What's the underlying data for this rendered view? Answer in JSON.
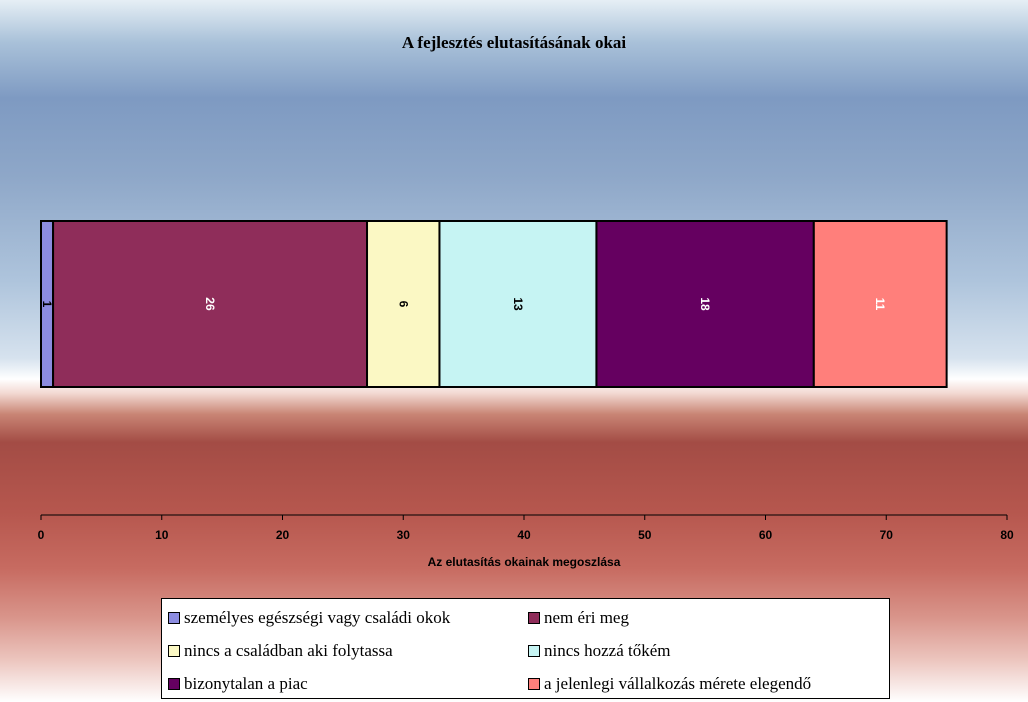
{
  "chart_data": {
    "type": "bar",
    "orientation": "horizontal",
    "stacked": true,
    "title": "A fejlesztés elutasításának okai",
    "xlabel": "Az elutasítás okainak megoszlása",
    "ylabel": "",
    "xlim": [
      0,
      80
    ],
    "x_ticks": [
      "0",
      "10",
      "20",
      "30",
      "40",
      "50",
      "60",
      "70",
      "80"
    ],
    "grid": false,
    "legend_position": "bottom",
    "series": [
      {
        "name": "személyes egészségi vagy családi okok",
        "value": 1,
        "label": "1",
        "color": "#8c8ce0",
        "label_color": "#000000"
      },
      {
        "name": "nem éri meg",
        "value": 26,
        "label": "26",
        "color": "#8f2d5a",
        "label_color": "#ffffff"
      },
      {
        "name": "nincs a családban aki folytassa",
        "value": 6,
        "label": "6",
        "color": "#fbf8c4",
        "label_color": "#000000"
      },
      {
        "name": "nincs hozzá tőkém",
        "value": 13,
        "label": "13",
        "color": "#c6f4f3",
        "label_color": "#000000"
      },
      {
        "name": "bizonytalan a piac",
        "value": 18,
        "label": "18",
        "color": "#650060",
        "label_color": "#ffffff"
      },
      {
        "name": "a jelenlegi vállalkozás mérete elegendő",
        "value": 11,
        "label": "11",
        "color": "#ff7f7b",
        "label_color": "#ffffff"
      }
    ]
  }
}
